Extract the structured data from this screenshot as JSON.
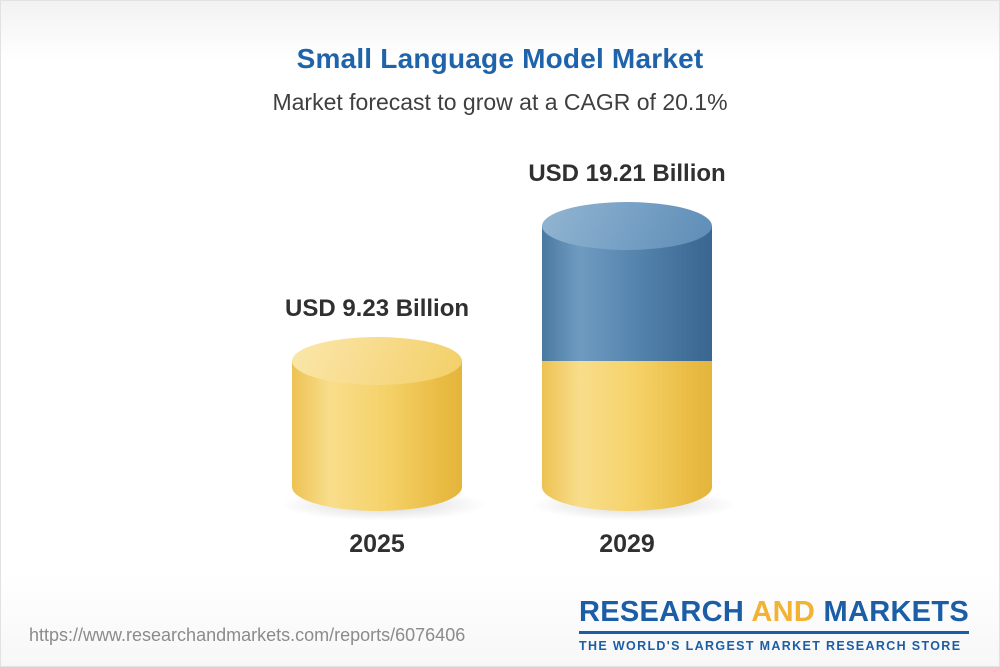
{
  "header": {
    "title": "Small Language Model Market",
    "subtitle": "Market forecast to grow at a CAGR of 20.1%"
  },
  "chart_data": {
    "type": "bar",
    "title": "Small Language Model Market",
    "subtitle": "Market forecast to grow at a CAGR of 20.1%",
    "unit": "USD Billion",
    "cagr_percent": 20.1,
    "categories": [
      "2025",
      "2029"
    ],
    "values": [
      9.23,
      19.21
    ],
    "value_labels": [
      "USD 9.23 Billion",
      "USD 19.21 Billion"
    ],
    "legend": "none",
    "grid": false,
    "colors": {
      "base_segment": "#F3CD5F",
      "growth_segment": "#4D7EA9",
      "title_blue": "#1F64AB"
    }
  },
  "footer": {
    "url": "https://www.researchandmarkets.com/reports/6076406",
    "logo": {
      "word_research": "RESEARCH",
      "word_and": "AND",
      "word_markets": "MARKETS",
      "tagline": "THE WORLD'S LARGEST MARKET RESEARCH STORE"
    }
  }
}
